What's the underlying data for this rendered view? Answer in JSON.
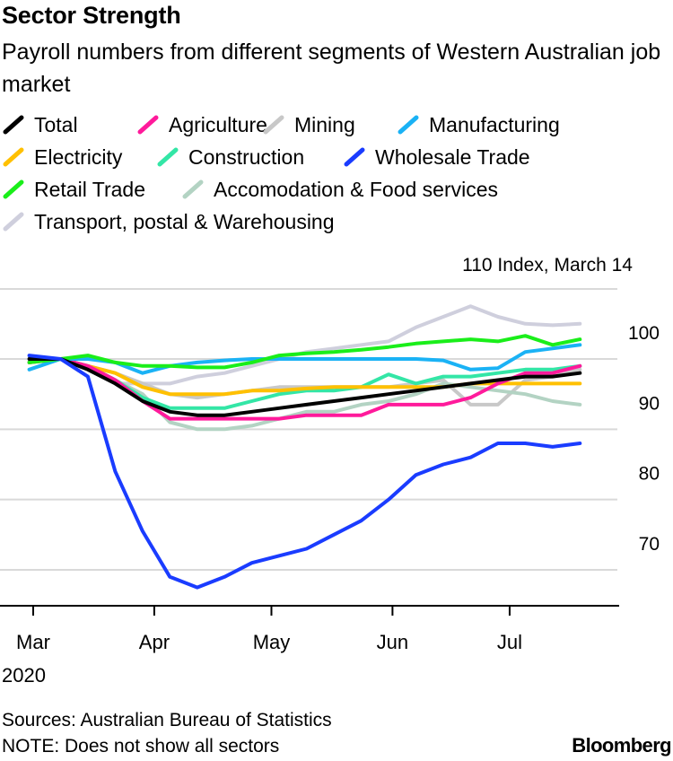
{
  "title": "Sector Strength",
  "subtitle": "Payroll numbers from different segments of Western Australian job market",
  "chart_data": {
    "type": "line",
    "title": "Sector Strength",
    "subtitle": "Payroll numbers from different segments of Western Australian job market",
    "ylabel": "Index, March 14",
    "ylabel_value": "110",
    "y_ticks": [
      70,
      80,
      90,
      100
    ],
    "ylim": [
      64,
      112
    ],
    "y_axis_side": "right",
    "x_range": [
      0,
      142
    ],
    "x_ticks": [
      {
        "label": "Mar",
        "day": 0
      },
      {
        "label": "Apr",
        "day": 31
      },
      {
        "label": "May",
        "day": 61
      },
      {
        "label": "Jun",
        "day": 92
      },
      {
        "label": "Jul",
        "day": 122
      }
    ],
    "year_label": "2020",
    "x_unit": "days since March 1, 2020",
    "x": [
      -1,
      7,
      14,
      21,
      28,
      35,
      42,
      49,
      56,
      63,
      70,
      77,
      84,
      91,
      98,
      105,
      112,
      119,
      126,
      133,
      140
    ],
    "series": [
      {
        "name": "Total",
        "color": "#000000",
        "values": [
          100,
          100,
          98.5,
          96.5,
          94,
          92.5,
          92,
          92,
          92.5,
          93,
          93.5,
          94,
          94.5,
          95,
          95.5,
          96,
          96.5,
          97,
          97.5,
          97.5,
          98
        ]
      },
      {
        "name": "Agriculture",
        "color": "#ff1a9b",
        "values": [
          99.5,
          100,
          99,
          97,
          94,
          91.5,
          91.5,
          91.5,
          91.5,
          91.5,
          92,
          92,
          92,
          93.5,
          93.5,
          93.5,
          94.5,
          96.5,
          98,
          98,
          99
        ]
      },
      {
        "name": "Mining",
        "color": "#c8c8c8",
        "values": [
          100,
          100,
          99,
          98,
          96.5,
          95,
          94.5,
          95,
          95.5,
          96,
          96,
          96,
          96,
          96,
          96.5,
          97,
          93.5,
          93.5,
          97,
          97.5,
          98.5
        ]
      },
      {
        "name": "Manufacturing",
        "color": "#1ab2f5",
        "values": [
          98.5,
          100,
          100,
          99.5,
          98,
          99,
          99.5,
          99.8,
          100,
          100,
          100,
          100,
          100,
          100,
          100,
          99.8,
          98.5,
          98.7,
          101,
          101.5,
          102
        ]
      },
      {
        "name": "Electricity",
        "color": "#ffc000",
        "values": [
          99.5,
          100,
          99,
          98,
          96,
          95,
          95,
          95,
          95.5,
          95.5,
          95.8,
          96,
          96,
          96,
          96,
          96,
          96.5,
          96.5,
          96.5,
          96.5,
          96.5
        ]
      },
      {
        "name": "Construction",
        "color": "#33e6a6",
        "values": [
          99.5,
          100,
          99,
          97,
          94.5,
          93,
          93,
          93,
          94,
          95,
          95.5,
          95.5,
          96,
          97.8,
          96.5,
          97.5,
          97.5,
          98,
          98.5,
          98.5,
          99
        ]
      },
      {
        "name": "Wholesale Trade",
        "color": "#1a3cff",
        "values": [
          100.5,
          100,
          97.5,
          84,
          75.5,
          69,
          67.5,
          69,
          71,
          72,
          73,
          75,
          77,
          80,
          83.5,
          85,
          86,
          88,
          88,
          87.5,
          88
        ]
      },
      {
        "name": "Retail Trade",
        "color": "#1aee1a",
        "values": [
          99.5,
          100,
          100.5,
          99.5,
          99,
          99,
          98.8,
          98.8,
          99.5,
          100.5,
          100.8,
          101,
          101.3,
          101.7,
          102.2,
          102.5,
          102.8,
          102.5,
          103.3,
          102,
          102.8
        ]
      },
      {
        "name": "Accomodation & Food services",
        "color": "#b3d3c3",
        "values": [
          100,
          100,
          99,
          97,
          95,
          91,
          90,
          90,
          90.5,
          91.5,
          92.5,
          92.5,
          93.5,
          94,
          95,
          96.5,
          96,
          95.5,
          95,
          94,
          93.5
        ]
      },
      {
        "name": "Transport, postal & Warehousing",
        "color": "#cfcfdd",
        "values": [
          100,
          100,
          98.5,
          96.5,
          96.5,
          96.5,
          97.5,
          98,
          99,
          100,
          101,
          101.5,
          102,
          102.5,
          104.5,
          106,
          107.5,
          106,
          105,
          104.8,
          105
        ]
      }
    ]
  },
  "legend_rows": [
    [
      "Total",
      "Agriculture",
      "Mining",
      "Manufacturing"
    ],
    [
      "Electricity",
      "Construction",
      "Wholesale Trade"
    ],
    [
      "Retail Trade",
      "Accomodation & Food services"
    ],
    [
      "Transport, postal & Warehousing"
    ]
  ],
  "sources": "Sources: Australian Bureau of Statistics",
  "note": "NOTE: Does not show all sectors",
  "brand": "Bloomberg"
}
